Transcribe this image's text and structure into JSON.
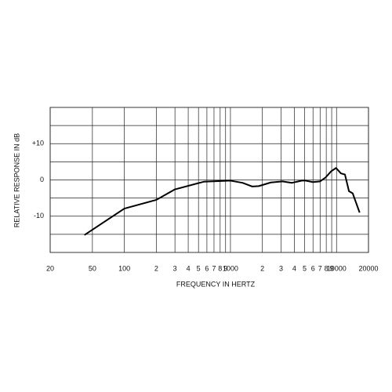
{
  "chart_data": {
    "type": "line",
    "x_label": "FREQUENCY IN HERTZ",
    "y_label": "RELATIVE RESPONSE IN dB",
    "x_scale": "log",
    "xlim": [
      20,
      20000
    ],
    "ylim": [
      -20,
      20
    ],
    "xticks": [
      20,
      50,
      100,
      {
        "value": 200,
        "label": "2"
      },
      {
        "value": 300,
        "label": "3"
      },
      {
        "value": 400,
        "label": "4"
      },
      {
        "value": 500,
        "label": "5"
      },
      {
        "value": 600,
        "label": "6"
      },
      {
        "value": 700,
        "label": "7"
      },
      {
        "value": 800,
        "label": "8"
      },
      {
        "value": 900,
        "label": "9"
      },
      1000,
      {
        "value": 2000,
        "label": "2"
      },
      {
        "value": 3000,
        "label": "3"
      },
      {
        "value": 4000,
        "label": "4"
      },
      {
        "value": 5000,
        "label": "5"
      },
      {
        "value": 6000,
        "label": "6"
      },
      {
        "value": 7000,
        "label": "7"
      },
      {
        "value": 8000,
        "label": "8"
      },
      {
        "value": 9000,
        "label": "9"
      },
      10000,
      20000
    ],
    "yticks": [
      {
        "value": 10,
        "label": "+10"
      },
      0,
      -10
    ],
    "ygrid": [
      -15,
      -10,
      -5,
      0,
      5,
      10,
      15
    ],
    "grid": true,
    "series": [
      {
        "color": "#000000",
        "x": [
          42,
          100,
          200,
          300,
          560,
          1000,
          1300,
          1600,
          1850,
          2400,
          3100,
          3400,
          3800,
          4700,
          5100,
          6000,
          7000,
          7900,
          8900,
          9900,
          11000,
          12000,
          13100,
          14200,
          16500
        ],
        "values": [
          -15.2,
          -7.9,
          -5.5,
          -2.6,
          -0.5,
          -0.2,
          -0.8,
          -1.8,
          -1.7,
          -0.7,
          -0.4,
          -0.6,
          -0.8,
          -0.2,
          -0.2,
          -0.6,
          -0.4,
          0.7,
          2.4,
          3.3,
          1.8,
          1.5,
          -3.1,
          -3.7,
          -9.0
        ]
      }
    ]
  }
}
